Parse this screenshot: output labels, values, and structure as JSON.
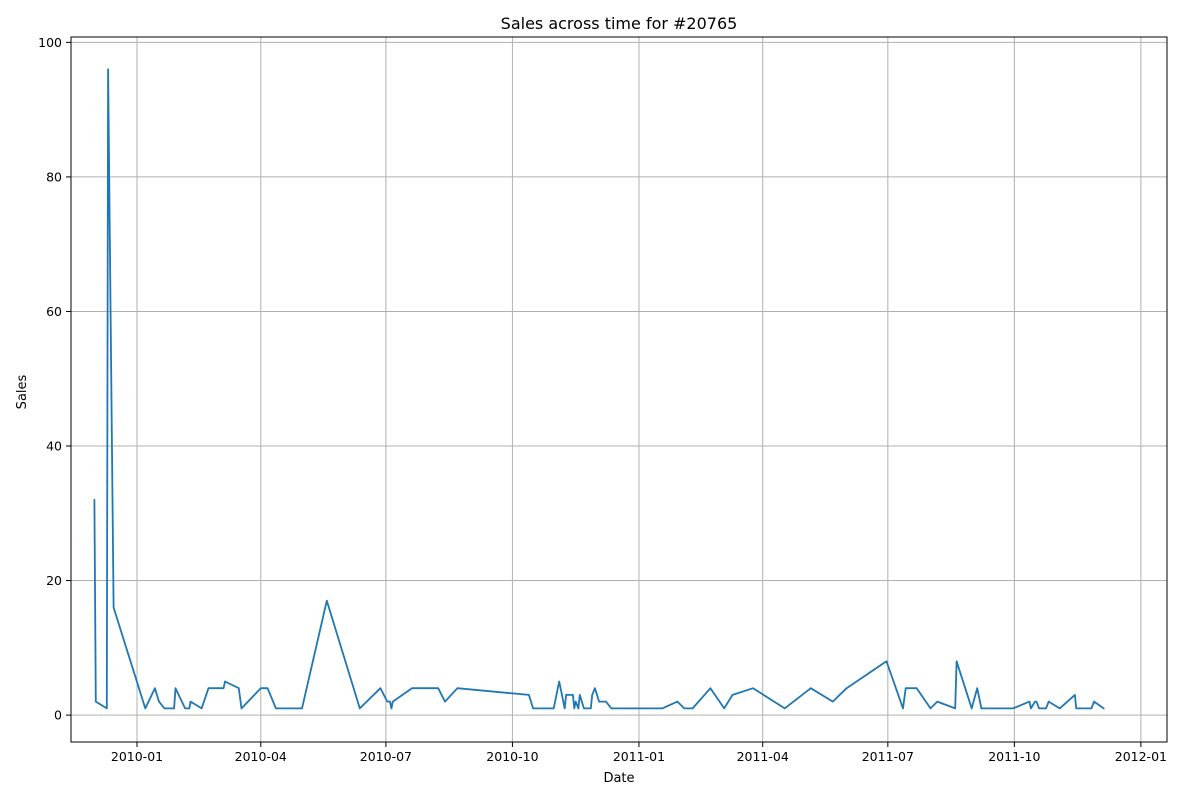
{
  "chart_data": {
    "type": "line",
    "title": "Sales across time for #20765",
    "xlabel": "Date",
    "ylabel": "Sales",
    "x_axis_type": "date",
    "xlim": [
      "2009-11-14",
      "2012-01-20"
    ],
    "ylim": [
      -4,
      100.8
    ],
    "grid": true,
    "line_color": "#1f77b4",
    "x_ticks": [
      "2010-01-01",
      "2010-04-01",
      "2010-07-01",
      "2010-10-01",
      "2011-01-01",
      "2011-04-01",
      "2011-07-01",
      "2011-10-01",
      "2012-01-01"
    ],
    "x_tick_labels": [
      "2010-01",
      "2010-04",
      "2010-07",
      "2010-10",
      "2011-01",
      "2011-04",
      "2011-07",
      "2011-10",
      "2012-01"
    ],
    "y_ticks": [
      0,
      20,
      40,
      60,
      80,
      100
    ],
    "y_tick_labels": [
      "0",
      "20",
      "40",
      "60",
      "80",
      "100"
    ],
    "series": [
      {
        "points": [
          [
            "2009-12-01",
            32
          ],
          [
            "2009-12-02",
            2
          ],
          [
            "2009-12-10",
            1
          ],
          [
            "2009-12-11",
            96
          ],
          [
            "2009-12-15",
            16
          ],
          [
            "2010-01-07",
            1
          ],
          [
            "2010-01-14",
            4
          ],
          [
            "2010-01-17",
            2
          ],
          [
            "2010-01-21",
            1
          ],
          [
            "2010-01-28",
            1
          ],
          [
            "2010-01-29",
            4
          ],
          [
            "2010-02-05",
            1
          ],
          [
            "2010-02-08",
            1
          ],
          [
            "2010-02-09",
            2
          ],
          [
            "2010-02-17",
            1
          ],
          [
            "2010-02-22",
            4
          ],
          [
            "2010-03-05",
            4
          ],
          [
            "2010-03-06",
            5
          ],
          [
            "2010-03-16",
            4
          ],
          [
            "2010-03-18",
            1
          ],
          [
            "2010-04-01",
            4
          ],
          [
            "2010-04-06",
            4
          ],
          [
            "2010-04-12",
            1
          ],
          [
            "2010-05-01",
            1
          ],
          [
            "2010-05-19",
            17
          ],
          [
            "2010-06-12",
            1
          ],
          [
            "2010-06-27",
            4
          ],
          [
            "2010-07-02",
            2
          ],
          [
            "2010-07-04",
            2
          ],
          [
            "2010-07-05",
            1
          ],
          [
            "2010-07-06",
            2
          ],
          [
            "2010-07-20",
            4
          ],
          [
            "2010-08-08",
            4
          ],
          [
            "2010-08-13",
            2
          ],
          [
            "2010-08-22",
            4
          ],
          [
            "2010-10-13",
            3
          ],
          [
            "2010-10-16",
            1
          ],
          [
            "2010-10-31",
            1
          ],
          [
            "2010-11-04",
            5
          ],
          [
            "2010-11-08",
            1
          ],
          [
            "2010-11-09",
            3
          ],
          [
            "2010-11-14",
            3
          ],
          [
            "2010-11-15",
            1
          ],
          [
            "2010-11-16",
            2
          ],
          [
            "2010-11-18",
            1
          ],
          [
            "2010-11-19",
            3
          ],
          [
            "2010-11-22",
            1
          ],
          [
            "2010-11-27",
            1
          ],
          [
            "2010-11-28",
            3
          ],
          [
            "2010-11-30",
            4
          ],
          [
            "2010-12-03",
            2
          ],
          [
            "2010-12-08",
            2
          ],
          [
            "2010-12-12",
            1
          ],
          [
            "2011-01-18",
            1
          ],
          [
            "2011-01-29",
            2
          ],
          [
            "2011-02-03",
            1
          ],
          [
            "2011-02-09",
            1
          ],
          [
            "2011-02-22",
            4
          ],
          [
            "2011-03-04",
            1
          ],
          [
            "2011-03-10",
            3
          ],
          [
            "2011-03-25",
            4
          ],
          [
            "2011-04-17",
            1
          ],
          [
            "2011-05-06",
            4
          ],
          [
            "2011-05-22",
            2
          ],
          [
            "2011-06-01",
            4
          ],
          [
            "2011-06-30",
            8
          ],
          [
            "2011-07-12",
            1
          ],
          [
            "2011-07-14",
            4
          ],
          [
            "2011-07-22",
            4
          ],
          [
            "2011-08-01",
            1
          ],
          [
            "2011-08-06",
            2
          ],
          [
            "2011-08-19",
            1
          ],
          [
            "2011-08-20",
            8
          ],
          [
            "2011-08-31",
            1
          ],
          [
            "2011-09-04",
            4
          ],
          [
            "2011-09-07",
            1
          ],
          [
            "2011-09-30",
            1
          ],
          [
            "2011-10-12",
            2
          ],
          [
            "2011-10-13",
            1
          ],
          [
            "2011-10-16",
            2
          ],
          [
            "2011-10-17",
            2
          ],
          [
            "2011-10-19",
            1
          ],
          [
            "2011-10-24",
            1
          ],
          [
            "2011-10-26",
            2
          ],
          [
            "2011-11-03",
            1
          ],
          [
            "2011-11-14",
            3
          ],
          [
            "2011-11-15",
            1
          ],
          [
            "2011-11-26",
            1
          ],
          [
            "2011-11-28",
            2
          ],
          [
            "2011-12-05",
            1
          ]
        ]
      }
    ]
  }
}
